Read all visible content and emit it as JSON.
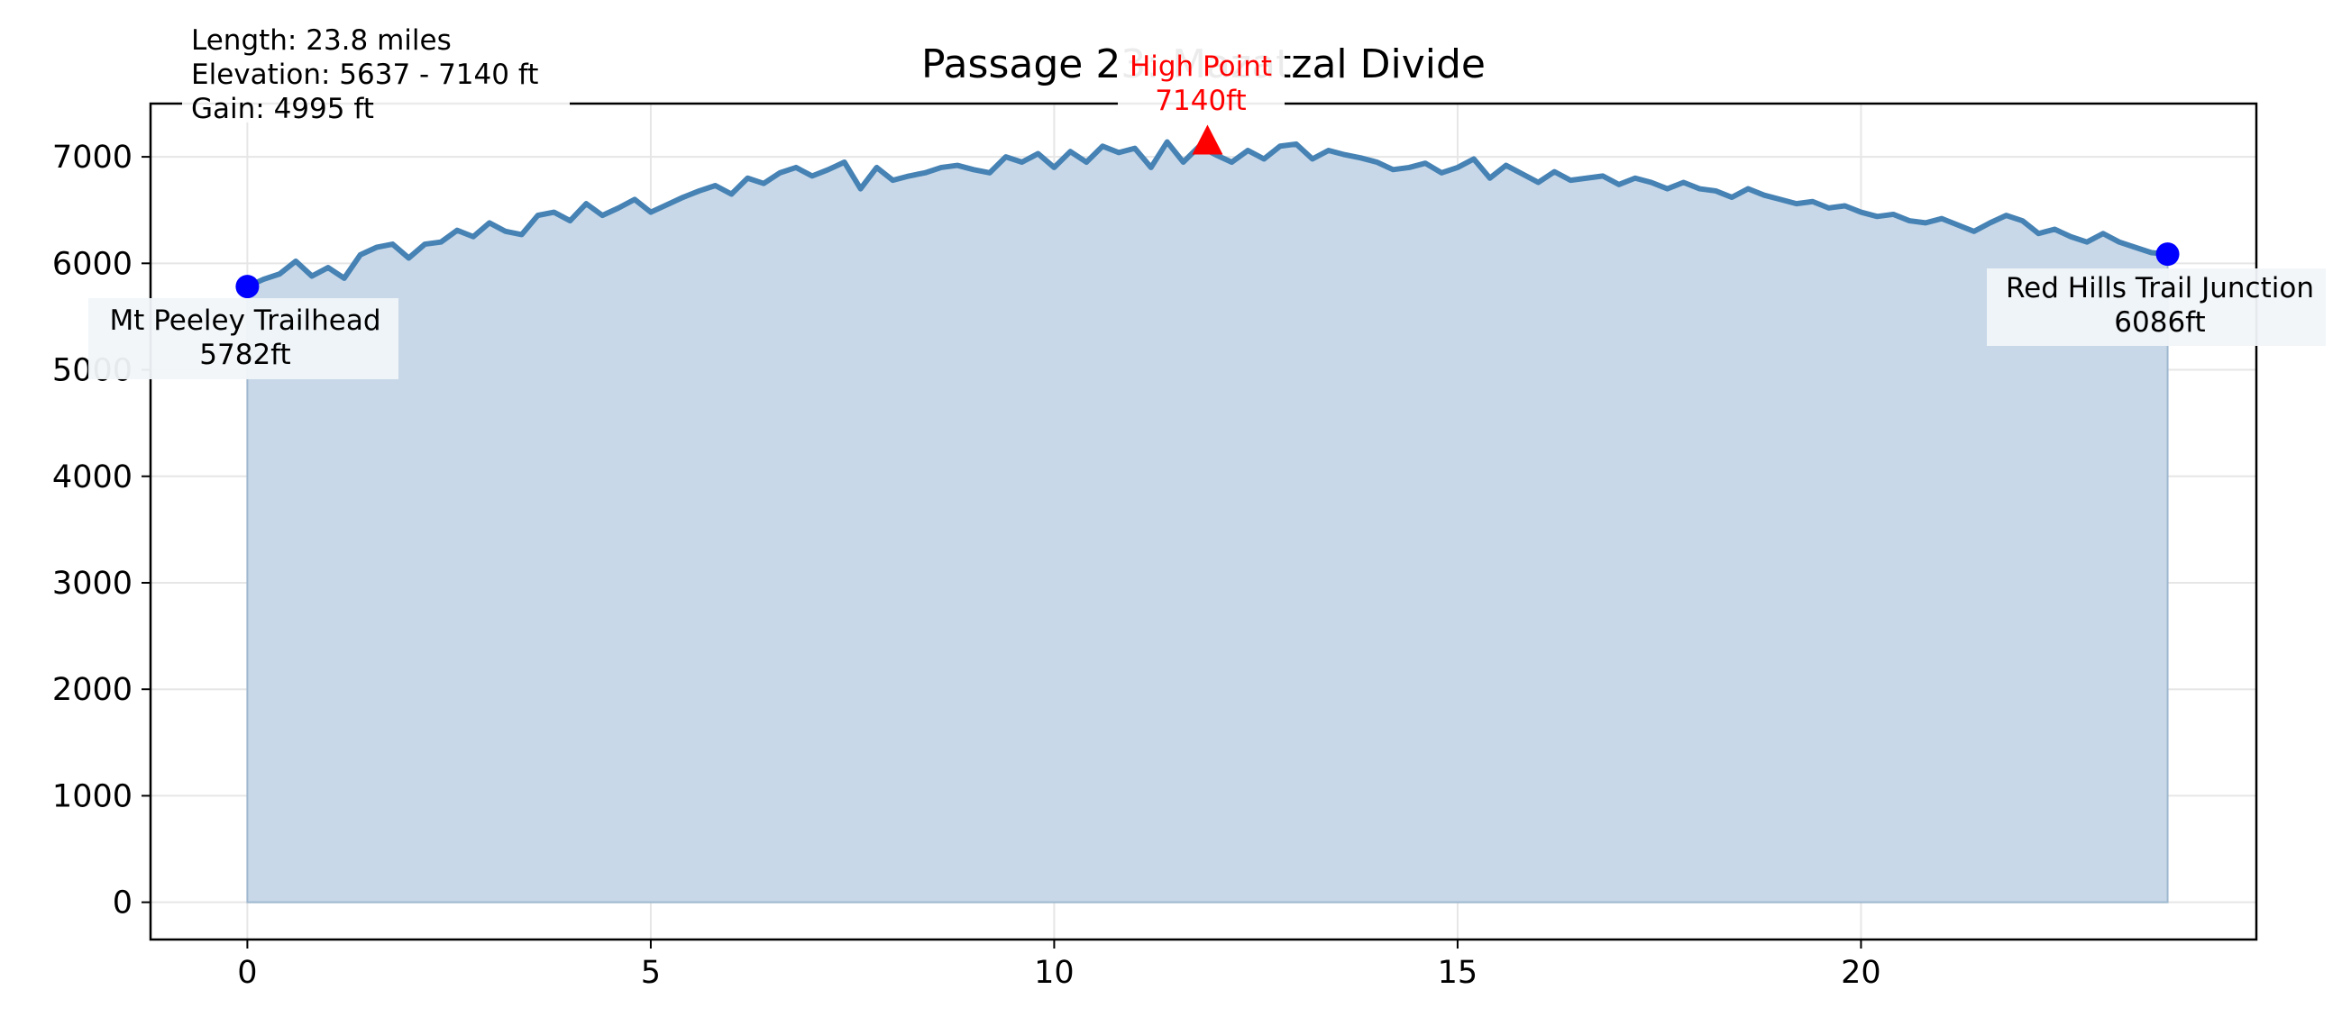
{
  "chart_data": {
    "type": "area",
    "title": "Passage 23: Mazatzal Divide",
    "xlabel": "",
    "ylabel": "",
    "xlim": [
      -1.2,
      24.9
    ],
    "ylim": [
      -350,
      7500
    ],
    "x_ticks": [
      0,
      5,
      10,
      15,
      20
    ],
    "y_ticks": [
      0,
      1000,
      2000,
      3000,
      4000,
      5000,
      6000,
      7000
    ],
    "grid": true,
    "colors": {
      "line": "#4682b4",
      "fill": "#c8d8e8",
      "endpoints": "#0000ff",
      "high_point": "#ff0000",
      "grid": "#e6e6e6"
    },
    "stats_box": {
      "length_text": "Length: 23.8 miles",
      "elevation_text": "Elevation: 5637 - 7140 ft",
      "gain_text": "Gain: 4995 ft"
    },
    "high_point": {
      "label": "High Point",
      "value_label": "7140ft",
      "x": 11.9,
      "y": 7140
    },
    "start_point": {
      "label": "Mt Peeley Trailhead",
      "value_label": "5782ft",
      "x": 0,
      "y": 5782
    },
    "end_point": {
      "label": "Red Hills Trail Junction",
      "value_label": "6086ft",
      "x": 23.8,
      "y": 6086
    },
    "series": [
      {
        "x": [
          0,
          0.2,
          0.4,
          0.6,
          0.8,
          1.0,
          1.2,
          1.4,
          1.6,
          1.8,
          2.0,
          2.2,
          2.4,
          2.6,
          2.8,
          3.0,
          3.2,
          3.4,
          3.6,
          3.8,
          4.0,
          4.2,
          4.4,
          4.6,
          4.8,
          5.0,
          5.2,
          5.4,
          5.6,
          5.8,
          6.0,
          6.2,
          6.4,
          6.6,
          6.8,
          7.0,
          7.2,
          7.4,
          7.6,
          7.8,
          8.0,
          8.2,
          8.4,
          8.6,
          8.8,
          9.0,
          9.2,
          9.4,
          9.6,
          9.8,
          10.0,
          10.2,
          10.4,
          10.6,
          10.8,
          11.0,
          11.2,
          11.4,
          11.6,
          11.8,
          12.0,
          12.2,
          12.4,
          12.6,
          12.8,
          13.0,
          13.2,
          13.4,
          13.6,
          13.8,
          14.0,
          14.2,
          14.4,
          14.6,
          14.8,
          15.0,
          15.2,
          15.4,
          15.6,
          15.8,
          16.0,
          16.2,
          16.4,
          16.6,
          16.8,
          17.0,
          17.2,
          17.4,
          17.6,
          17.8,
          18.0,
          18.2,
          18.4,
          18.6,
          18.8,
          19.0,
          19.2,
          19.4,
          19.6,
          19.8,
          20.0,
          20.2,
          20.4,
          20.6,
          20.8,
          21.0,
          21.2,
          21.4,
          21.6,
          21.8,
          22.0,
          22.2,
          22.4,
          22.6,
          22.8,
          23.0,
          23.2,
          23.4,
          23.6,
          23.8
        ],
        "y": [
          5782,
          5850,
          5900,
          6020,
          5880,
          5960,
          5860,
          6080,
          6150,
          6180,
          6050,
          6180,
          6200,
          6310,
          6250,
          6380,
          6300,
          6270,
          6450,
          6480,
          6400,
          6560,
          6450,
          6520,
          6600,
          6480,
          6550,
          6620,
          6680,
          6730,
          6650,
          6800,
          6750,
          6850,
          6900,
          6820,
          6880,
          6950,
          6700,
          6900,
          6780,
          6820,
          6850,
          6900,
          6920,
          6880,
          6850,
          7000,
          6950,
          7030,
          6900,
          7050,
          6950,
          7100,
          7040,
          7080,
          6900,
          7140,
          6950,
          7100,
          7020,
          6950,
          7060,
          6980,
          7100,
          7120,
          6980,
          7060,
          7020,
          6990,
          6950,
          6880,
          6900,
          6940,
          6850,
          6900,
          6980,
          6800,
          6920,
          6840,
          6760,
          6860,
          6780,
          6800,
          6820,
          6740,
          6800,
          6760,
          6700,
          6760,
          6700,
          6680,
          6620,
          6700,
          6640,
          6600,
          6560,
          6580,
          6520,
          6540,
          6480,
          6440,
          6460,
          6400,
          6380,
          6420,
          6360,
          6300,
          6380,
          6450,
          6400,
          6280,
          6320,
          6250,
          6200,
          6280,
          6200,
          6150,
          6100,
          6086
        ]
      }
    ]
  }
}
